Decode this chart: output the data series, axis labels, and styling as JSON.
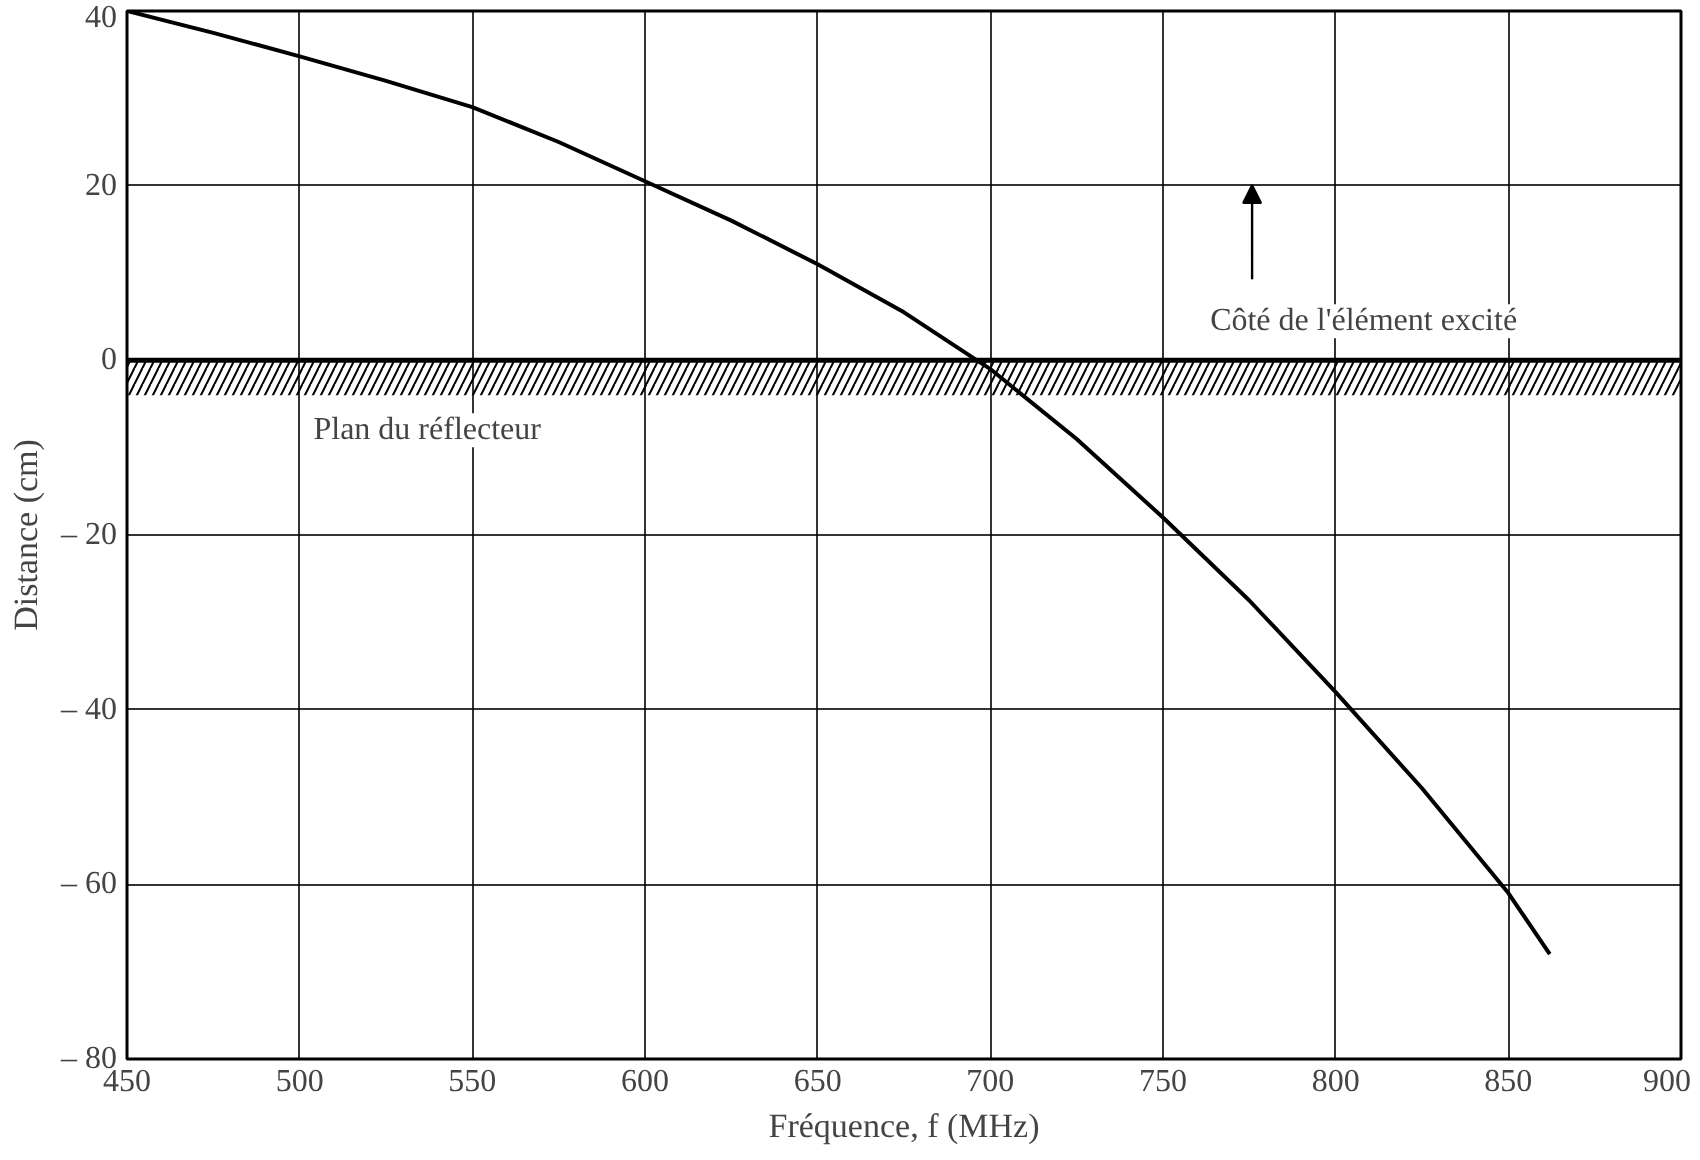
{
  "chart_data": {
    "type": "line",
    "xlabel": "Fréquence, f (MHz)",
    "ylabel": "Distance (cm)",
    "x": [
      450,
      475,
      500,
      525,
      550,
      575,
      600,
      625,
      650,
      675,
      700,
      725,
      750,
      775,
      800,
      825,
      850,
      862
    ],
    "series": [
      {
        "color": "#000000",
        "values": [
          40,
          37.5,
          34.8,
          32,
          29,
          25,
          20.5,
          16,
          11,
          5.5,
          -1,
          -9,
          -18,
          -27.5,
          -38,
          -49,
          -61,
          -68
        ]
      }
    ],
    "xlim": [
      450,
      900
    ],
    "ylim": [
      -80,
      40
    ],
    "xticks": [
      450,
      500,
      550,
      600,
      650,
      700,
      750,
      800,
      850,
      900
    ],
    "yticks": [
      40,
      20,
      0,
      {
        "value": -20,
        "label": "– 20"
      },
      {
        "value": -40,
        "label": "– 40"
      },
      {
        "value": -60,
        "label": "– 60"
      },
      {
        "value": -80,
        "label": "– 80"
      }
    ],
    "grid": true,
    "marker": "none",
    "line_style": "solid",
    "ref_lines": [
      {
        "axis": "y",
        "value": 0,
        "color": "#000000"
      }
    ],
    "bands": [
      {
        "axis": "y",
        "from": -4,
        "to": 0,
        "color": "#000000"
      }
    ],
    "annotations": [
      "Côté de l'élément excité",
      "Plan du réflecteur"
    ]
  }
}
